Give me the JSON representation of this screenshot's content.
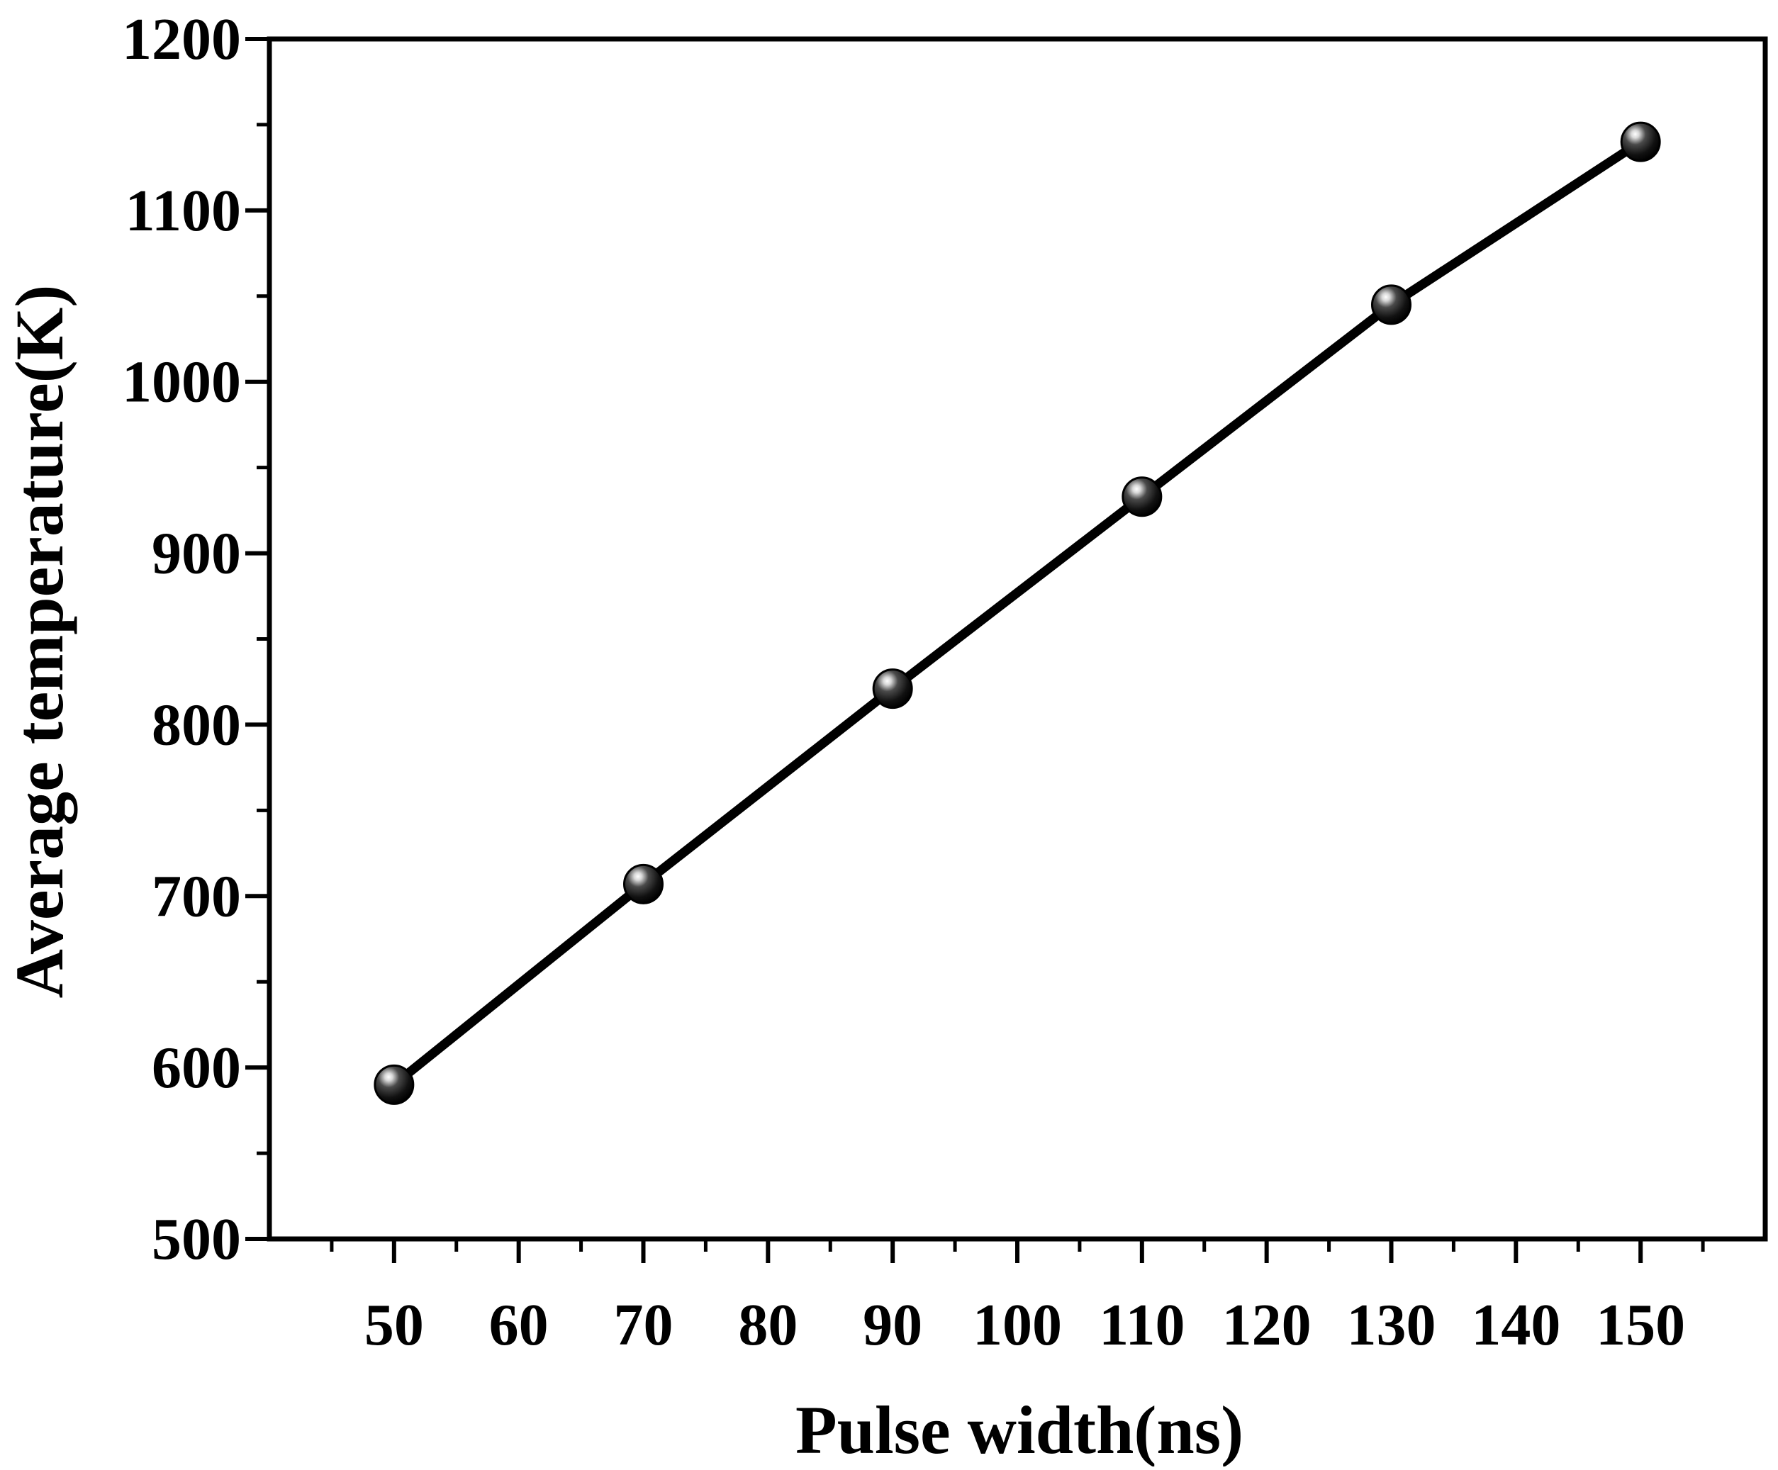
{
  "chart_data": {
    "type": "line",
    "title": "",
    "xlabel": "Pulse width(ns)",
    "ylabel": "Average temperature(K)",
    "xlim": [
      40,
      160
    ],
    "ylim": [
      500,
      1200
    ],
    "x_ticks": [
      50,
      60,
      70,
      80,
      90,
      100,
      110,
      120,
      130,
      140,
      150
    ],
    "x_tick_labels": [
      "50",
      "60",
      "70",
      "80",
      "90",
      "100",
      "110",
      "120",
      "130",
      "140",
      "150"
    ],
    "y_ticks": [
      500,
      600,
      700,
      800,
      900,
      1000,
      1100,
      1200
    ],
    "y_tick_labels": [
      "500",
      "600",
      "700",
      "800",
      "900",
      "1000",
      "1100",
      "1200"
    ],
    "grid": false,
    "legend": "none",
    "series": [
      {
        "x": [
          50,
          70,
          90,
          110,
          130,
          150
        ],
        "y": [
          590,
          707,
          821,
          933,
          1045,
          1140
        ],
        "line_color": "#000000",
        "marker": "sphere",
        "marker_color": "#000000"
      }
    ]
  }
}
